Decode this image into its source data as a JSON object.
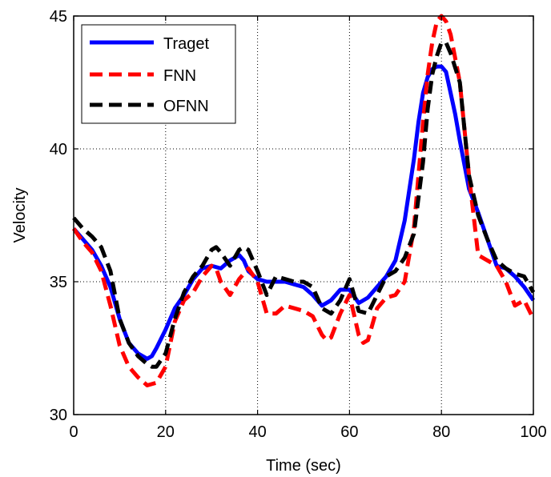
{
  "colors": {
    "background": "#ffffff",
    "axes": "#000000",
    "grid": "#000000"
  },
  "chart_data": {
    "type": "line",
    "title": "",
    "xlabel": "Time (sec)",
    "ylabel": "Velocity",
    "xlim": [
      0,
      100
    ],
    "ylim": [
      30,
      45
    ],
    "xticks": [
      0,
      20,
      40,
      60,
      80,
      100
    ],
    "yticks": [
      30,
      35,
      40,
      45
    ],
    "xtick_labels": [
      "0",
      "20",
      "40",
      "60",
      "80",
      "100"
    ],
    "ytick_labels": [
      "30",
      "35",
      "40",
      "45"
    ],
    "grid": true,
    "grid_style": "dotted",
    "legend_position": "top-left",
    "series": [
      {
        "name": "Traget",
        "color": "#0000ff",
        "line_style": "solid",
        "x": [
          0,
          2,
          4,
          6,
          8,
          10,
          12,
          14,
          16,
          17,
          18,
          20,
          22,
          24,
          26,
          28,
          30,
          32,
          34,
          36,
          37,
          38,
          40,
          42,
          44,
          46,
          48,
          50,
          52,
          54,
          56,
          58,
          60,
          62,
          64,
          66,
          68,
          70,
          72,
          74,
          75,
          76,
          77,
          78,
          79,
          80,
          81,
          82,
          83,
          84,
          86,
          88,
          90,
          92,
          94,
          96,
          98,
          100
        ],
        "y": [
          37.0,
          36.6,
          36.2,
          35.6,
          34.8,
          33.6,
          32.7,
          32.3,
          32.1,
          32.2,
          32.5,
          33.2,
          34.0,
          34.5,
          35.1,
          35.5,
          35.6,
          35.5,
          35.8,
          36.0,
          35.8,
          35.4,
          35.1,
          35.0,
          35.0,
          35.0,
          34.9,
          34.8,
          34.5,
          34.1,
          34.3,
          34.7,
          34.7,
          34.2,
          34.4,
          34.8,
          35.2,
          35.8,
          37.3,
          39.6,
          41.0,
          42.1,
          42.7,
          43.0,
          43.1,
          43.1,
          42.9,
          42.1,
          41.3,
          40.3,
          38.5,
          37.6,
          36.6,
          35.6,
          35.5,
          35.2,
          34.8,
          34.3
        ]
      },
      {
        "name": "FNN",
        "color": "#ff0000",
        "line_style": "dashed",
        "x": [
          0,
          2,
          4,
          6,
          8,
          10,
          12,
          14,
          16,
          18,
          20,
          22,
          24,
          26,
          28,
          30,
          31,
          32,
          34,
          36,
          38,
          40,
          42,
          44,
          46,
          48,
          50,
          52,
          54,
          55,
          56,
          58,
          60,
          62,
          63,
          64,
          66,
          68,
          70,
          72,
          74,
          76,
          77,
          78,
          79,
          80,
          81,
          82,
          84,
          86,
          88,
          90,
          92,
          94,
          96,
          98,
          100
        ],
        "y": [
          37.0,
          36.5,
          36.1,
          35.4,
          34.1,
          32.6,
          31.8,
          31.4,
          31.1,
          31.2,
          31.8,
          33.5,
          34.3,
          34.6,
          35.2,
          35.6,
          35.5,
          35.0,
          34.5,
          35.1,
          35.5,
          35.0,
          33.8,
          33.8,
          34.1,
          34.0,
          33.9,
          33.7,
          33.0,
          32.8,
          32.9,
          33.8,
          34.5,
          33.0,
          32.7,
          32.8,
          34.0,
          34.4,
          34.5,
          35.0,
          37.0,
          41.0,
          42.8,
          44.0,
          44.8,
          45.0,
          44.8,
          44.3,
          42.5,
          39.0,
          36.0,
          35.8,
          35.6,
          35.0,
          34.1,
          34.3,
          33.6
        ]
      },
      {
        "name": "OFNN",
        "color": "#000000",
        "line_style": "dashed",
        "x": [
          0,
          2,
          4,
          6,
          8,
          10,
          12,
          14,
          16,
          17,
          18,
          20,
          22,
          24,
          26,
          28,
          30,
          31,
          32,
          34,
          35,
          36,
          37,
          38,
          40,
          42,
          44,
          46,
          48,
          50,
          52,
          54,
          56,
          58,
          60,
          62,
          64,
          66,
          68,
          70,
          72,
          74,
          76,
          77,
          78,
          79,
          80,
          81,
          82,
          84,
          86,
          88,
          90,
          92,
          94,
          96,
          98,
          100
        ],
        "y": [
          37.4,
          37.0,
          36.7,
          36.3,
          35.4,
          33.6,
          32.7,
          32.2,
          31.9,
          31.8,
          31.8,
          32.3,
          33.6,
          34.6,
          35.2,
          35.6,
          36.2,
          36.3,
          36.1,
          35.6,
          35.9,
          36.2,
          36.3,
          36.2,
          35.4,
          34.5,
          35.2,
          35.1,
          35.0,
          35.0,
          34.8,
          34.0,
          33.8,
          34.3,
          35.1,
          33.9,
          33.8,
          34.5,
          35.2,
          35.4,
          35.9,
          36.8,
          39.5,
          41.5,
          42.8,
          43.5,
          44.0,
          44.0,
          43.6,
          42.5,
          39.0,
          37.5,
          36.6,
          35.8,
          35.5,
          35.3,
          35.2,
          34.6
        ]
      }
    ]
  }
}
